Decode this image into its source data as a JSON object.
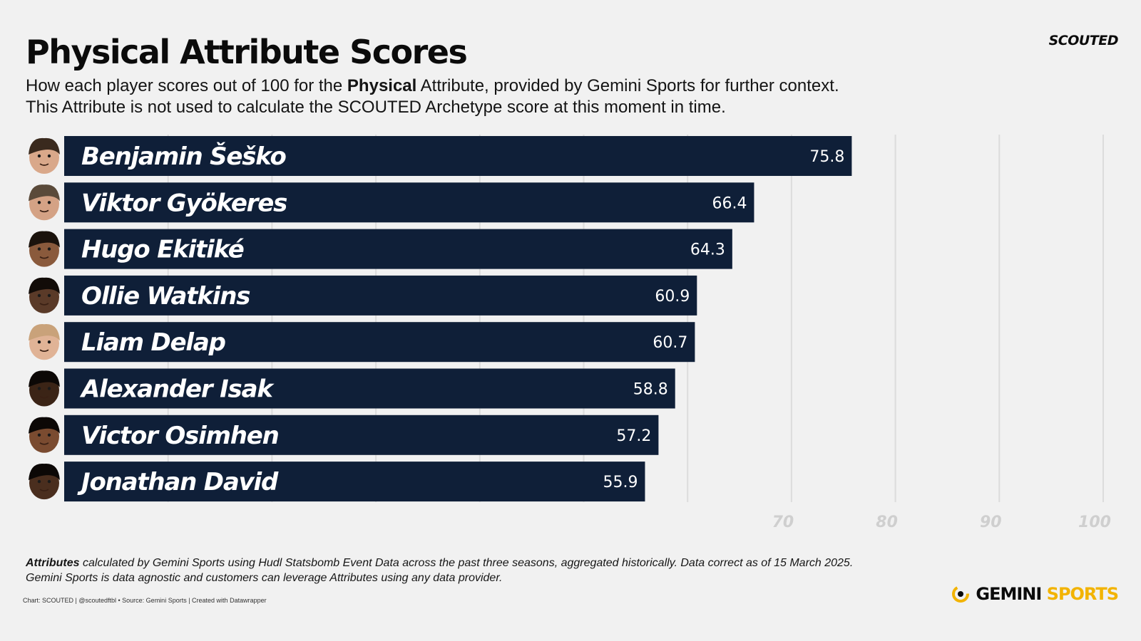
{
  "header": {
    "title": "Physical Attribute Scores",
    "brand": "SCOUTED",
    "subtitle_line1_pre": "How each player scores out of 100 for the ",
    "subtitle_line1_bold": "Physical",
    "subtitle_line1_post": " Attribute, provided by Gemini Sports for further context.",
    "subtitle_line2": "This Attribute is not used to calculate the SCOUTED Archetype score at this moment in time."
  },
  "chart_data": {
    "type": "bar",
    "orientation": "horizontal",
    "categories": [
      "Benjamin Šeško",
      "Viktor  Gyökeres",
      "Hugo Ekitiké",
      "Ollie Watkins",
      "Liam Delap",
      "Alexander Isak",
      "Victor Osimhen",
      "Jonathan David"
    ],
    "values": [
      75.8,
      66.4,
      64.3,
      60.9,
      60.7,
      58.8,
      57.2,
      55.9
    ],
    "value_labels": [
      "75.8",
      "66.4",
      "64.3",
      "60.9",
      "60.7",
      "58.8",
      "57.2",
      "55.9"
    ],
    "xlim": [
      0,
      100
    ],
    "gridlines": [
      10,
      20,
      30,
      40,
      50,
      60,
      70,
      80,
      90,
      100
    ],
    "tick_labels": [
      "70",
      "80",
      "90",
      "100"
    ],
    "tick_values": [
      70,
      80,
      90,
      100
    ],
    "bar_color": "#0f1f38",
    "grid_color": "#dcdcdc",
    "grid": true,
    "headshots": true
  },
  "footer": {
    "note_bold": "Attributes",
    "note_line1": " calculated by Gemini Sports using Hudl Statsbomb Event Data across the past three seasons, aggregated historically. Data correct as of 15 March 2025.",
    "note_line2": "Gemini Sports is data agnostic and customers can leverage Attributes using any data provider.",
    "credits": "Chart: SCOUTED | @scoutedftbl • Source: Gemini Sports | Created with Datawrapper",
    "logo_word1": "GEMINI",
    "logo_word2": "SPORTS"
  },
  "colors": {
    "background": "#f1f1f1",
    "bar": "#0f1f38",
    "accent": "#f2b300"
  }
}
